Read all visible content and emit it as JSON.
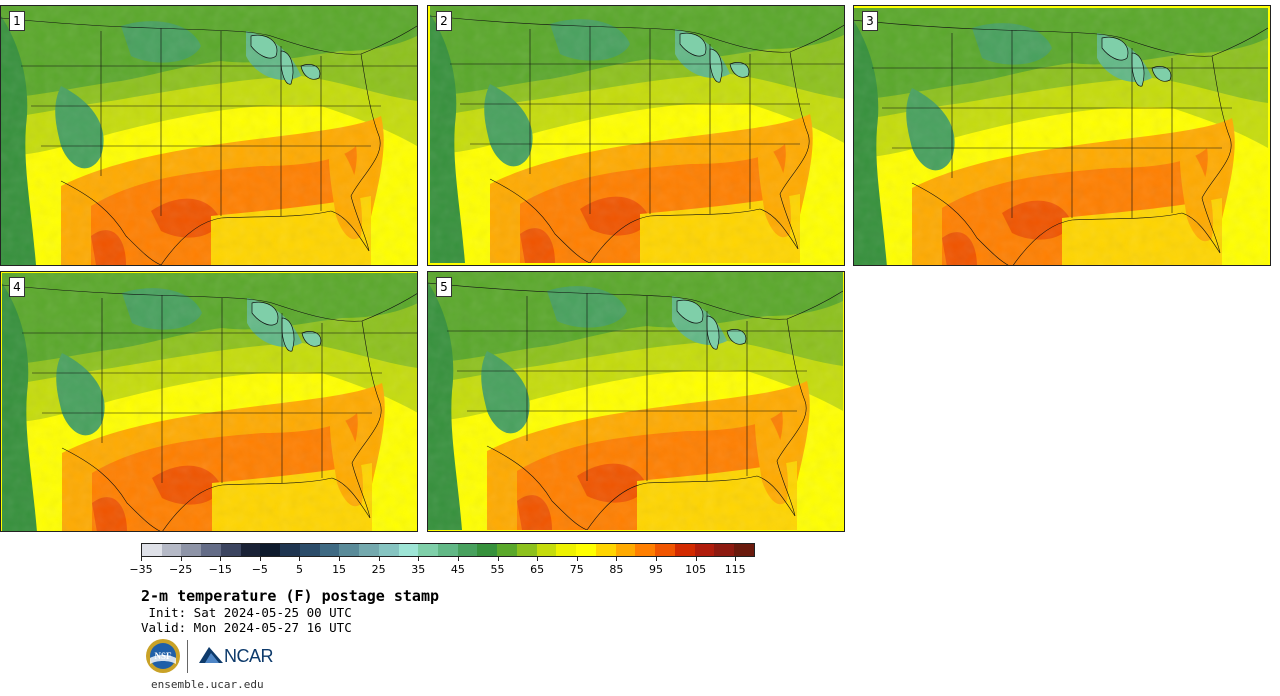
{
  "panels": [
    {
      "label": "1"
    },
    {
      "label": "2"
    },
    {
      "label": "3"
    },
    {
      "label": "4"
    },
    {
      "label": "5"
    }
  ],
  "colorbar": {
    "colors": [
      "#dfe1e8",
      "#b5b9c6",
      "#8e94a7",
      "#646c87",
      "#3c4560",
      "#1a2236",
      "#0e1a2c",
      "#1f3550",
      "#2c4d6a",
      "#3f6a83",
      "#5a8b99",
      "#74a9ae",
      "#86c4c1",
      "#9ee5d6",
      "#7fcfa9",
      "#62b886",
      "#48a15e",
      "#36913c",
      "#5aa82b",
      "#8dc11d",
      "#c5dc0c",
      "#eef200",
      "#ffff00",
      "#ffd500",
      "#ffaa00",
      "#ff7f00",
      "#f05500",
      "#d22a00",
      "#b01c0c",
      "#8d1a10",
      "#6a1a0d"
    ],
    "min": -35,
    "max": 120,
    "tick_labels": [
      "−35",
      "−25",
      "−15",
      "−5",
      "5",
      "15",
      "25",
      "35",
      "45",
      "55",
      "65",
      "75",
      "85",
      "95",
      "105",
      "115"
    ]
  },
  "title": "2-m temperature (F) postage stamp",
  "init": " Init: Sat 2024-05-25 00 UTC",
  "valid": "Valid: Mon 2024-05-27 16 UTC",
  "logos": {
    "nsf_icon": "nsf-logo-icon",
    "ncar_text": "NCAR"
  },
  "site": "ensemble.ucar.edu"
}
